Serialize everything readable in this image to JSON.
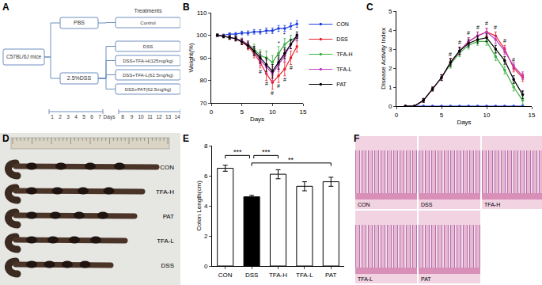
{
  "panel_labels": [
    "A",
    "B",
    "C",
    "D",
    "E",
    "F"
  ],
  "diagram": {
    "root": "C57BL/6J mice",
    "header": "Treatments",
    "groups": [
      {
        "label": "PBS",
        "treatments": [
          "Control"
        ]
      },
      {
        "label": "2.5%DSS",
        "treatments": [
          "DSS",
          "DSS+TFA-H(125mg/kg)",
          "DSS+TFA-L(62.5mg/kg)",
          "DSS+PAT(62.5mg/kg)"
        ]
      }
    ],
    "timeline": {
      "first": [
        "1",
        "2",
        "3",
        "4",
        "5",
        "6",
        "7"
      ],
      "label": "Days",
      "second": [
        "8",
        "9",
        "10",
        "11",
        "12",
        "13",
        "14"
      ]
    }
  },
  "chart_data": [
    {
      "type": "line",
      "xlabel": "Days",
      "ylabel": "Weight(%)",
      "x": [
        1,
        2,
        3,
        4,
        5,
        6,
        7,
        8,
        9,
        10,
        11,
        12,
        13,
        14
      ],
      "xlim": [
        0,
        15
      ],
      "xticks": [
        0,
        5,
        10,
        15
      ],
      "ylim": [
        70,
        110
      ],
      "yticks": [
        70,
        80,
        90,
        100,
        110
      ],
      "marker": "circle",
      "legend": "right",
      "series": [
        {
          "name": "CON",
          "color": "#1f3fdd",
          "values": [
            100,
            100,
            100.5,
            100.5,
            101,
            101,
            101.5,
            101.5,
            102,
            102,
            103,
            103,
            104,
            105
          ],
          "errors": [
            0.5,
            0.5,
            0.6,
            0.7,
            0.8,
            0.9,
            1,
            1,
            1.2,
            1.2,
            1.3,
            1.3,
            1.4,
            1.5
          ]
        },
        {
          "name": "DSS",
          "color": "#e8202a",
          "values": [
            100,
            99.5,
            99,
            98.5,
            97,
            95,
            92,
            88,
            83,
            79,
            82,
            85,
            90,
            95
          ],
          "errors": [
            0.5,
            0.6,
            0.8,
            1,
            1.2,
            1.5,
            2,
            2.5,
            3,
            3,
            3,
            3,
            3,
            2.5
          ]
        },
        {
          "name": "TFA-H",
          "color": "#3cb043",
          "values": [
            100,
            99.5,
            99,
            98.5,
            97.5,
            96,
            94,
            91,
            90,
            88,
            92,
            96,
            98,
            99
          ],
          "errors": [
            0.5,
            0.6,
            0.8,
            1,
            1.2,
            1.5,
            2,
            2.5,
            3,
            3,
            3,
            2.5,
            2,
            1.5
          ]
        },
        {
          "name": "TFA-L",
          "color": "#c03cc0",
          "values": [
            100,
            99.5,
            99,
            98.5,
            97.5,
            96,
            93,
            89,
            86,
            83,
            87,
            91,
            96,
            99
          ],
          "errors": [
            0.5,
            0.6,
            0.8,
            1,
            1.2,
            1.5,
            2,
            2.5,
            3,
            3,
            3,
            2.5,
            2,
            1.5
          ]
        },
        {
          "name": "PAT",
          "color": "#000000",
          "values": [
            100,
            99.5,
            99,
            98.5,
            97,
            95.5,
            93,
            90,
            87,
            84,
            88,
            92,
            96,
            100
          ],
          "errors": [
            0.5,
            0.6,
            0.8,
            1,
            1.2,
            1.5,
            2,
            2.5,
            3,
            3,
            3,
            2.5,
            2,
            1.5
          ]
        }
      ],
      "annotations": [
        {
          "x": 8,
          "y": 84,
          "text": "#"
        },
        {
          "x": 9,
          "y": 78.5,
          "text": "#"
        },
        {
          "x": 10,
          "y": 74.5,
          "text": "#"
        },
        {
          "x": 11,
          "y": 77.5,
          "text": "#"
        },
        {
          "x": 12,
          "y": 80.5,
          "text": "#"
        },
        {
          "x": 13,
          "y": 85.5,
          "text": "#"
        },
        {
          "x": 11,
          "y": 96.5,
          "text": "*"
        },
        {
          "x": 12,
          "y": 100.5,
          "text": "*"
        }
      ]
    },
    {
      "type": "line",
      "xlabel": "Days",
      "ylabel": "Disease Activity Index",
      "x": [
        1,
        2,
        3,
        4,
        5,
        6,
        7,
        8,
        9,
        10,
        11,
        12,
        13,
        14
      ],
      "xlim": [
        0,
        15
      ],
      "xticks": [
        0,
        5,
        10,
        15
      ],
      "ylim": [
        0,
        5
      ],
      "yticks": [
        0,
        1,
        2,
        3,
        4,
        5
      ],
      "marker": "circle",
      "series": [
        {
          "name": "CON",
          "color": "#1f3fdd",
          "values": [
            0,
            0,
            0,
            0,
            0,
            0,
            0,
            0,
            0,
            0,
            0,
            0,
            0,
            0
          ],
          "errors": [
            0,
            0,
            0,
            0,
            0,
            0,
            0,
            0,
            0,
            0,
            0,
            0,
            0,
            0
          ]
        },
        {
          "name": "DSS",
          "color": "#e8202a",
          "values": [
            0,
            0,
            0.3,
            0.9,
            1.5,
            2.3,
            2.9,
            3.4,
            3.7,
            3.9,
            3.7,
            3.0,
            2.0,
            1.5
          ],
          "errors": [
            0,
            0,
            0.1,
            0.1,
            0.15,
            0.2,
            0.2,
            0.2,
            0.2,
            0.2,
            0.2,
            0.2,
            0.2,
            0.2
          ]
        },
        {
          "name": "TFA-H",
          "color": "#3cb043",
          "values": [
            0,
            0,
            0.3,
            0.9,
            1.5,
            2.2,
            2.8,
            3.2,
            3.4,
            3.4,
            2.6,
            1.9,
            1.0,
            0.3
          ],
          "errors": [
            0,
            0,
            0.1,
            0.1,
            0.15,
            0.2,
            0.2,
            0.2,
            0.2,
            0.2,
            0.2,
            0.2,
            0.2,
            0.2
          ]
        },
        {
          "name": "TFA-L",
          "color": "#c03cc0",
          "values": [
            0,
            0,
            0.3,
            0.9,
            1.5,
            2.3,
            2.9,
            3.4,
            3.7,
            3.9,
            3.5,
            2.9,
            2.1,
            1.6
          ],
          "errors": [
            0,
            0,
            0.1,
            0.1,
            0.15,
            0.2,
            0.2,
            0.2,
            0.2,
            0.2,
            0.2,
            0.2,
            0.2,
            0.2
          ]
        },
        {
          "name": "PAT",
          "color": "#000000",
          "values": [
            0,
            0,
            0.3,
            0.9,
            1.5,
            2.3,
            2.9,
            3.3,
            3.5,
            3.6,
            3.0,
            2.4,
            1.4,
            0.6
          ],
          "errors": [
            0,
            0,
            0.1,
            0.1,
            0.15,
            0.2,
            0.2,
            0.2,
            0.2,
            0.2,
            0.2,
            0.2,
            0.2,
            0.2
          ]
        }
      ],
      "annotations": [
        {
          "x": 6,
          "y": 2.75,
          "text": "#"
        },
        {
          "x": 7,
          "y": 3.35,
          "text": "#"
        },
        {
          "x": 8,
          "y": 3.85,
          "text": "#"
        },
        {
          "x": 9,
          "y": 4.15,
          "text": "#"
        },
        {
          "x": 10,
          "y": 4.35,
          "text": "#"
        },
        {
          "x": 11,
          "y": 4.15,
          "text": "#"
        },
        {
          "x": 12,
          "y": 3.45,
          "text": "#"
        },
        {
          "x": 13,
          "y": 2.45,
          "text": "#"
        },
        {
          "x": 11,
          "y": 2.95,
          "text": "*"
        },
        {
          "x": 12,
          "y": 2.3,
          "text": "*"
        },
        {
          "x": 13,
          "y": 1.4,
          "text": "*"
        },
        {
          "x": 14,
          "y": 0.75,
          "text": "*"
        }
      ]
    },
    {
      "type": "bar",
      "ylabel": "Colon Length(cm)",
      "categories": [
        "CON",
        "DSS",
        "TFA-H",
        "TFA-L",
        "PAT"
      ],
      "values": [
        6.5,
        4.6,
        6.1,
        5.3,
        5.6
      ],
      "errors": [
        0.2,
        0.1,
        0.3,
        0.3,
        0.3
      ],
      "colors": [
        "#ffffff",
        "#000000",
        "#ffffff",
        "#ffffff",
        "#ffffff"
      ],
      "ylim": [
        0,
        8
      ],
      "yticks": [
        0,
        2,
        4,
        6,
        8
      ],
      "significance": [
        {
          "from": "CON",
          "to": "DSS",
          "label": "***"
        },
        {
          "from": "DSS",
          "to": "TFA-H",
          "label": "***"
        },
        {
          "from": "DSS",
          "to": "PAT",
          "label": "**"
        }
      ]
    }
  ],
  "photo": {
    "labels": [
      "CON",
      "TFA-H",
      "PAT",
      "TFA-L",
      "DSS"
    ]
  },
  "histology": {
    "labels": [
      "CON",
      "DSS",
      "TFA-H",
      "TFA-L",
      "PAT"
    ]
  }
}
